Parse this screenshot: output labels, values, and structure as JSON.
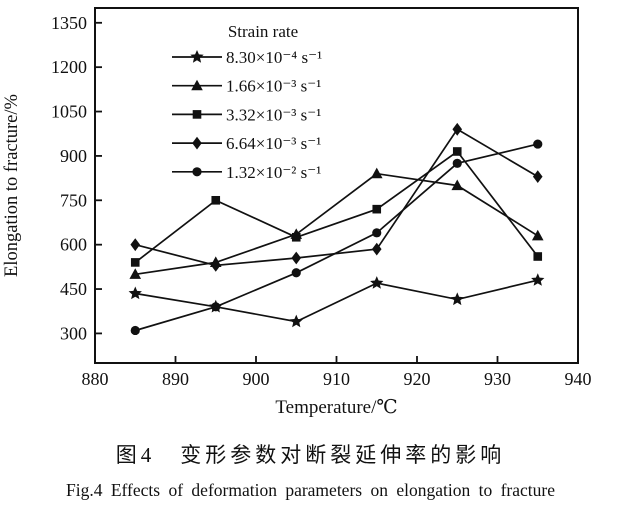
{
  "figure": {
    "caption_zh": "图4　变形参数对断裂延伸率的影响",
    "caption_en": "Fig.4  Effects of deformation parameters on elongation to fracture"
  },
  "chart_data": {
    "type": "line",
    "title": "",
    "xlabel": "Temperature/℃",
    "ylabel": "Elongation to fracture/%",
    "xlim": [
      880,
      940
    ],
    "ylim": [
      200,
      1400
    ],
    "x_ticks": [
      880,
      890,
      900,
      910,
      920,
      930,
      940
    ],
    "y_ticks": [
      300,
      450,
      600,
      750,
      900,
      1050,
      1200,
      1350
    ],
    "grid": false,
    "legend_title": "Strain rate",
    "legend_position": "upper-center-inside",
    "x": [
      885,
      895,
      905,
      915,
      925,
      935
    ],
    "series": [
      {
        "name": "8.30×10⁻⁴ s⁻¹",
        "marker": "star",
        "values": [
          435,
          390,
          340,
          470,
          415,
          480
        ]
      },
      {
        "name": "1.66×10⁻³ s⁻¹",
        "marker": "triangle",
        "values": [
          500,
          540,
          635,
          840,
          800,
          630
        ]
      },
      {
        "name": "3.32×10⁻³ s⁻¹",
        "marker": "square",
        "values": [
          540,
          750,
          625,
          720,
          915,
          560
        ]
      },
      {
        "name": "6.64×10⁻³ s⁻¹",
        "marker": "diamond",
        "values": [
          600,
          530,
          555,
          585,
          990,
          830
        ]
      },
      {
        "name": "1.32×10⁻² s⁻¹",
        "marker": "circle",
        "values": [
          310,
          390,
          505,
          640,
          875,
          940
        ]
      }
    ],
    "colors": {
      "line": "#111111",
      "background": "#ffffff"
    }
  }
}
